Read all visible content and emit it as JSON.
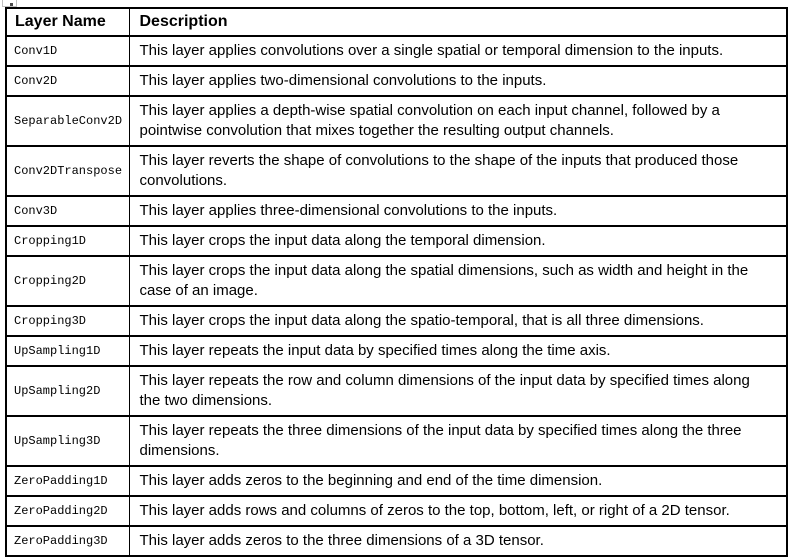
{
  "page": {
    "background_color": "#ffffff",
    "border_color": "#000000",
    "text_color": "#000000"
  },
  "table": {
    "columns": [
      "Layer Name",
      "Description"
    ],
    "rows": [
      {
        "layer": "Conv1D",
        "description": "This layer applies convolutions over a single spatial or temporal dimension to the inputs."
      },
      {
        "layer": "Conv2D",
        "description": "This layer applies two-dimensional convolutions to the inputs."
      },
      {
        "layer": "SeparableConv2D",
        "description": "This layer applies a depth-wise spatial convolution on each input channel, followed by a pointwise convolution that mixes together the resulting output channels."
      },
      {
        "layer": "Conv2DTranspose",
        "description": "This layer reverts the shape of convolutions to the shape of the inputs that produced those convolutions."
      },
      {
        "layer": "Conv3D",
        "description": "This layer applies three-dimensional convolutions to the inputs."
      },
      {
        "layer": "Cropping1D",
        "description": "This layer crops the input data along the temporal dimension."
      },
      {
        "layer": "Cropping2D",
        "description": "This layer crops the input data along the spatial dimensions, such as width and height in the case of an image."
      },
      {
        "layer": "Cropping3D",
        "description": "This layer crops the input data along the spatio-temporal, that is all three dimensions."
      },
      {
        "layer": "UpSampling1D",
        "description": "This layer repeats the input data by specified times along the time axis."
      },
      {
        "layer": "UpSampling2D",
        "description": "This layer repeats the row and column dimensions of the input data by specified times along the two dimensions."
      },
      {
        "layer": "UpSampling3D",
        "description": "This layer repeats the three dimensions of the input data by specified times along the three dimensions."
      },
      {
        "layer": "ZeroPadding1D",
        "description": "This layer adds zeros to the beginning and end of the time dimension."
      },
      {
        "layer": "ZeroPadding2D",
        "description": "This layer adds rows and columns of zeros to the top, bottom, left, or right of a 2D tensor."
      },
      {
        "layer": "ZeroPadding3D",
        "description": "This layer adds zeros to the three dimensions of a 3D tensor."
      }
    ]
  }
}
